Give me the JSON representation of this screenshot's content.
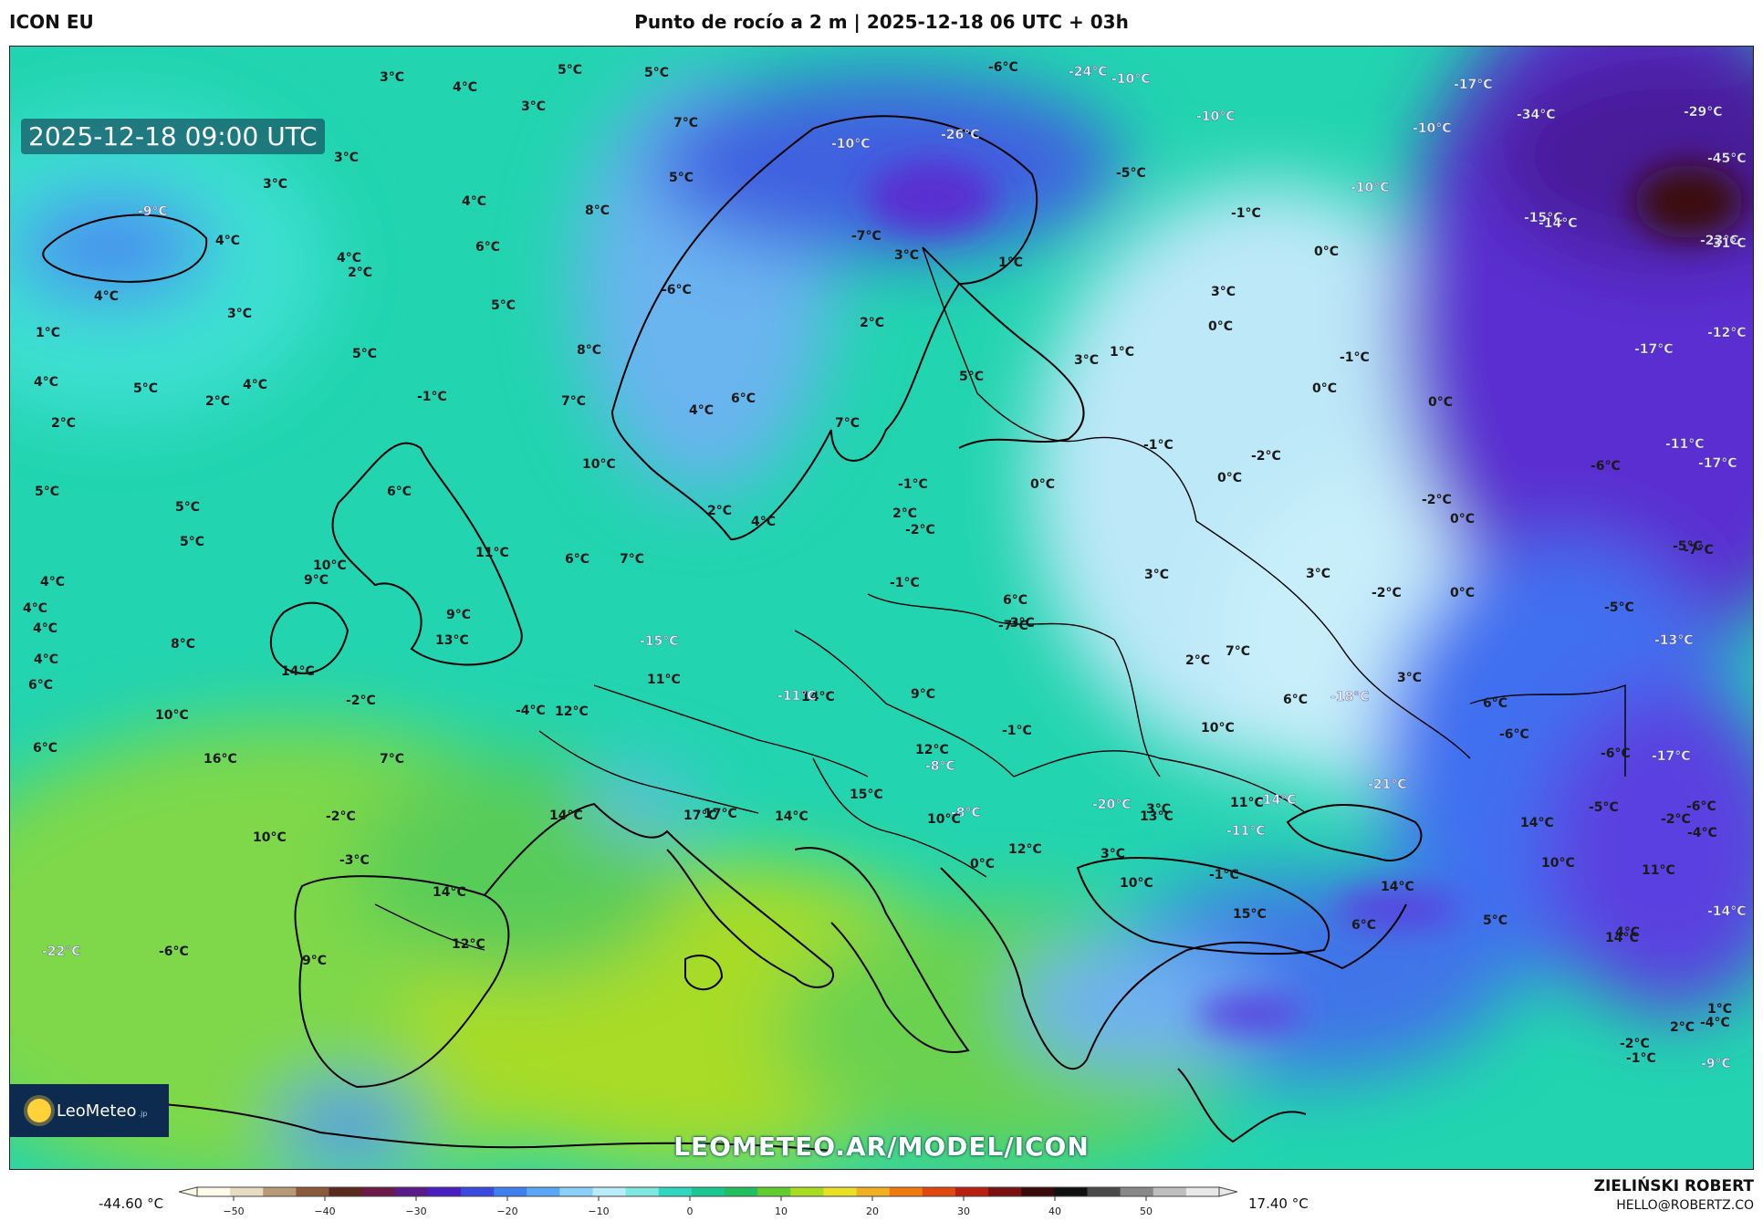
{
  "header": {
    "model": "ICON EU",
    "title": "Punto de rocío a 2 m | 2025-12-18 06 UTC + 03h"
  },
  "map": {
    "valid_time": "2025-12-18 09:00 UTC",
    "watermark": "LEOMETEO.AR/MODEL/ICON",
    "logo_text": "LeoMeteo",
    "logo_suffix": ".jp",
    "labels": [
      {
        "text": "3°C"
      },
      {
        "text": "4°C"
      },
      {
        "text": "5°C"
      },
      {
        "text": "5°C"
      },
      {
        "text": "3°C"
      },
      {
        "text": "7°C"
      },
      {
        "text": "-6°C"
      },
      {
        "text": "-24°C"
      },
      {
        "text": "-10°C"
      },
      {
        "text": "-17°C"
      },
      {
        "text": "-34°C"
      },
      {
        "text": "-29°C"
      },
      {
        "text": "-10°C"
      },
      {
        "text": "-26°C"
      },
      {
        "text": "-10°C"
      },
      {
        "text": "-10°C"
      },
      {
        "text": "-45°C"
      },
      {
        "text": "-5°C"
      },
      {
        "text": "-10°C"
      },
      {
        "text": "-1°C"
      },
      {
        "text": "-15°C"
      },
      {
        "text": "-14°C"
      },
      {
        "text": "-23°C"
      },
      {
        "text": "-31°C"
      },
      {
        "text": "-9°C"
      },
      {
        "text": "3°C"
      },
      {
        "text": "3°C"
      },
      {
        "text": "4°C"
      },
      {
        "text": "5°C"
      },
      {
        "text": "8°C"
      },
      {
        "text": "4°C"
      },
      {
        "text": "6°C"
      },
      {
        "text": "4°C"
      },
      {
        "text": "2°C"
      },
      {
        "text": "-7°C"
      },
      {
        "text": "3°C"
      },
      {
        "text": "1°C"
      },
      {
        "text": "0°C"
      },
      {
        "text": "-6°C"
      },
      {
        "text": "4°C"
      },
      {
        "text": "5°C"
      },
      {
        "text": "3°C"
      },
      {
        "text": "3°C"
      },
      {
        "text": "1°C"
      },
      {
        "text": "2°C"
      },
      {
        "text": "0°C"
      },
      {
        "text": "-12°C"
      },
      {
        "text": "5°C"
      },
      {
        "text": "8°C"
      },
      {
        "text": "3°C"
      },
      {
        "text": "1°C"
      },
      {
        "text": "-1°C"
      },
      {
        "text": "-17°C"
      },
      {
        "text": "4°C"
      },
      {
        "text": "5°C"
      },
      {
        "text": "4°C"
      },
      {
        "text": "-1°C"
      },
      {
        "text": "2°C"
      },
      {
        "text": "7°C"
      },
      {
        "text": "4°C"
      },
      {
        "text": "6°C"
      },
      {
        "text": "5°C"
      },
      {
        "text": "0°C"
      },
      {
        "text": "0°C"
      },
      {
        "text": "2°C"
      },
      {
        "text": "7°C"
      },
      {
        "text": "-1°C"
      },
      {
        "text": "-2°C"
      },
      {
        "text": "-11°C"
      },
      {
        "text": "-17°C"
      },
      {
        "text": "10°C"
      },
      {
        "text": "-1°C"
      },
      {
        "text": "0°C"
      },
      {
        "text": "0°C"
      },
      {
        "text": "-6°C"
      },
      {
        "text": "5°C"
      },
      {
        "text": "6°C"
      },
      {
        "text": "5°C"
      },
      {
        "text": "-2°C"
      },
      {
        "text": "-2°C"
      },
      {
        "text": "2°C"
      },
      {
        "text": "2°C"
      },
      {
        "text": "4°C"
      },
      {
        "text": "0°C"
      },
      {
        "text": "-5°C"
      },
      {
        "text": "5°C"
      },
      {
        "text": "11°C"
      },
      {
        "text": "6°C"
      },
      {
        "text": "7°C"
      },
      {
        "text": "-7°C"
      },
      {
        "text": "3°C"
      },
      {
        "text": "10°C"
      },
      {
        "text": "4°C"
      },
      {
        "text": "9°C"
      },
      {
        "text": "-1°C"
      },
      {
        "text": "3°C"
      },
      {
        "text": "0°C"
      },
      {
        "text": "-2°C"
      },
      {
        "text": "4°C"
      },
      {
        "text": "4°C"
      },
      {
        "text": "-5°C"
      },
      {
        "text": "6°C"
      },
      {
        "text": "-7°C"
      },
      {
        "text": "9°C"
      },
      {
        "text": "-3°C"
      },
      {
        "text": "8°C"
      },
      {
        "text": "13°C"
      },
      {
        "text": "-15°C"
      },
      {
        "text": "-13°C"
      },
      {
        "text": "4°C"
      },
      {
        "text": "14°C"
      },
      {
        "text": "11°C"
      },
      {
        "text": "2°C"
      },
      {
        "text": "7°C"
      },
      {
        "text": "3°C"
      },
      {
        "text": "6°C"
      },
      {
        "text": "-18°C"
      },
      {
        "text": "6°C"
      },
      {
        "text": "-6°C"
      },
      {
        "text": "-2°C"
      },
      {
        "text": "-4°C"
      },
      {
        "text": "12°C"
      },
      {
        "text": "14°C"
      },
      {
        "text": "6°C"
      },
      {
        "text": "9°C"
      },
      {
        "text": "-11°C"
      },
      {
        "text": "10°C"
      },
      {
        "text": "6°C"
      },
      {
        "text": "-1°C"
      },
      {
        "text": "10°C"
      },
      {
        "text": "16°C"
      },
      {
        "text": "7°C"
      },
      {
        "text": "12°C"
      },
      {
        "text": "-8°C"
      },
      {
        "text": "-17°C"
      },
      {
        "text": "-6°C"
      },
      {
        "text": "15°C"
      },
      {
        "text": "-14°C"
      },
      {
        "text": "-21°C"
      },
      {
        "text": "-5°C"
      },
      {
        "text": "14°C"
      },
      {
        "text": "17°C"
      },
      {
        "text": "11°C"
      },
      {
        "text": "-20°C"
      },
      {
        "text": "-8°C"
      },
      {
        "text": "-2°C"
      },
      {
        "text": "17°C"
      },
      {
        "text": "14°C"
      },
      {
        "text": "10°C"
      },
      {
        "text": "13°C"
      },
      {
        "text": "3°C"
      },
      {
        "text": "10°C"
      },
      {
        "text": "-3°C"
      },
      {
        "text": "12°C"
      },
      {
        "text": "3°C"
      },
      {
        "text": "-11°C"
      },
      {
        "text": "-4°C"
      },
      {
        "text": "11°C"
      },
      {
        "text": "14°C"
      },
      {
        "text": "14°C"
      },
      {
        "text": "10°C"
      },
      {
        "text": "-1°C"
      },
      {
        "text": "-2°C"
      },
      {
        "text": "-22°C"
      },
      {
        "text": "-6°C"
      },
      {
        "text": "4°C"
      },
      {
        "text": "14°C"
      },
      {
        "text": "15°C"
      },
      {
        "text": "6°C"
      },
      {
        "text": "9°C"
      },
      {
        "text": "12°C"
      },
      {
        "text": "0°C"
      },
      {
        "text": "5°C"
      },
      {
        "text": "14°C"
      },
      {
        "text": "-14°C"
      },
      {
        "text": "10°C"
      },
      {
        "text": "-6°C"
      },
      {
        "text": "1°C"
      },
      {
        "text": "-4°C"
      },
      {
        "text": "2°C"
      },
      {
        "text": "-2°C"
      },
      {
        "text": "-1°C"
      },
      {
        "text": "-9°C"
      }
    ]
  },
  "colorbar": {
    "min_label": "-44.60 °C",
    "max_label": "17.40 °C",
    "ticks": [
      "−50",
      "−40",
      "−30",
      "−20",
      "−10",
      "0",
      "10",
      "20",
      "30",
      "40",
      "50"
    ],
    "colors": [
      "#fffbe8",
      "#e8dcc0",
      "#b89a78",
      "#8a5a3a",
      "#5a2a1e",
      "#6b1a4a",
      "#5a1a8a",
      "#4a1fc2",
      "#3a4ae0",
      "#3f7ff0",
      "#5aa8f5",
      "#8ad0f8",
      "#b8ecfa",
      "#7ee8e0",
      "#2ed8c0",
      "#18c890",
      "#20c060",
      "#60cc30",
      "#a8dc20",
      "#e8e020",
      "#f0b020",
      "#f07a10",
      "#e04810",
      "#b82010",
      "#7a1010",
      "#3a0a0a",
      "#101010",
      "#4a4a4a",
      "#888888",
      "#bfbfbf",
      "#e8e8e8"
    ]
  },
  "author": {
    "name": "ZIELIŃSKI ROBERT",
    "email": "HELLO@ROBERTZ.CO"
  }
}
